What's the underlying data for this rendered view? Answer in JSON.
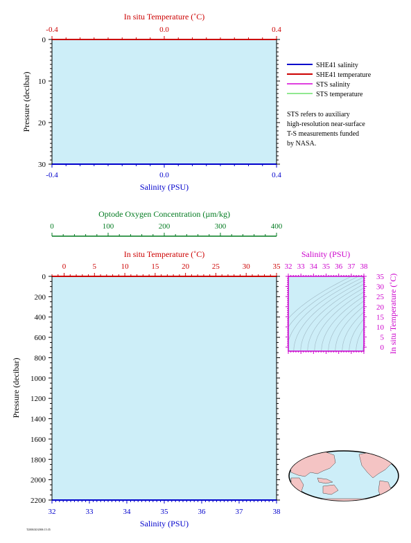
{
  "colors": {
    "plot_bg": "#cdeef8",
    "salinity": "#0000cc",
    "temperature": "#cc0000",
    "oxygen": "#007a1f",
    "ts": "#cc00cc",
    "sts_salinity": "#e040e0",
    "sts_temperature": "#90e890",
    "land": "#f4c4c4",
    "ocean": "#cdeef8"
  },
  "legend": {
    "items": [
      {
        "label": "SHE41 salinity",
        "color": "#0000cc"
      },
      {
        "label": "SHE41 temperature",
        "color": "#cc0000"
      },
      {
        "label": "STS salinity",
        "color": "#e040e0"
      },
      {
        "label": "STS temperature",
        "color": "#90e890"
      }
    ],
    "note": [
      "STS refers to auxiliary",
      "high-resolution near-surface",
      "T-S measurements funded",
      "by NASA."
    ]
  },
  "footer": {
    "stamp": "T2000/20/2006 15:35"
  },
  "chart_data": [
    {
      "type": "line",
      "panel": "near-surface",
      "title": "",
      "top_axis": {
        "label": "In situ Temperature (˚C)",
        "ticks": [
          "-0.4",
          "0.0",
          "0.4"
        ],
        "range": [
          -0.4,
          0.4
        ]
      },
      "bottom_axis": {
        "label": "Salinity (PSU)",
        "ticks": [
          "-0.4",
          "0.0",
          "0.4"
        ],
        "range": [
          -0.4,
          0.4
        ]
      },
      "left_axis": {
        "label": "Pressure (decibar)",
        "ticks": [
          "0",
          "10",
          "20",
          "30"
        ],
        "range": [
          0,
          30
        ],
        "inverted": true
      },
      "series": []
    },
    {
      "type": "line",
      "panel": "oxygen-axis",
      "axis": {
        "label": "Optode Oxygen Concentration (µm/kg)",
        "ticks": [
          "0",
          "100",
          "200",
          "300",
          "400"
        ],
        "range": [
          0,
          400
        ]
      },
      "series": []
    },
    {
      "type": "line",
      "panel": "full-depth",
      "top_axis": {
        "label": "In situ Temperature (˚C)",
        "ticks": [
          "0",
          "5",
          "10",
          "15",
          "20",
          "25",
          "30",
          "35"
        ],
        "range": [
          -2,
          35
        ]
      },
      "bottom_axis": {
        "label": "Salinity (PSU)",
        "ticks": [
          "32",
          "33",
          "34",
          "35",
          "36",
          "37",
          "38"
        ],
        "range": [
          32,
          38
        ]
      },
      "left_axis": {
        "label": "Pressure (decibar)",
        "ticks": [
          "0",
          "200",
          "400",
          "600",
          "800",
          "1000",
          "1200",
          "1400",
          "1600",
          "1800",
          "2000",
          "2200"
        ],
        "range": [
          0,
          2200
        ],
        "inverted": true
      },
      "series": []
    },
    {
      "type": "scatter",
      "panel": "T-S diagram",
      "top_axis": {
        "label": "Salinity (PSU)",
        "ticks": [
          "32",
          "33",
          "34",
          "35",
          "36",
          "37",
          "38"
        ],
        "range": [
          32,
          38
        ]
      },
      "right_axis": {
        "label": "In situ Temperature (˚C)",
        "ticks": [
          "0",
          "5",
          "10",
          "15",
          "20",
          "25",
          "30",
          "35"
        ],
        "range": [
          -2,
          35
        ]
      },
      "density_contours": true,
      "series": []
    }
  ]
}
